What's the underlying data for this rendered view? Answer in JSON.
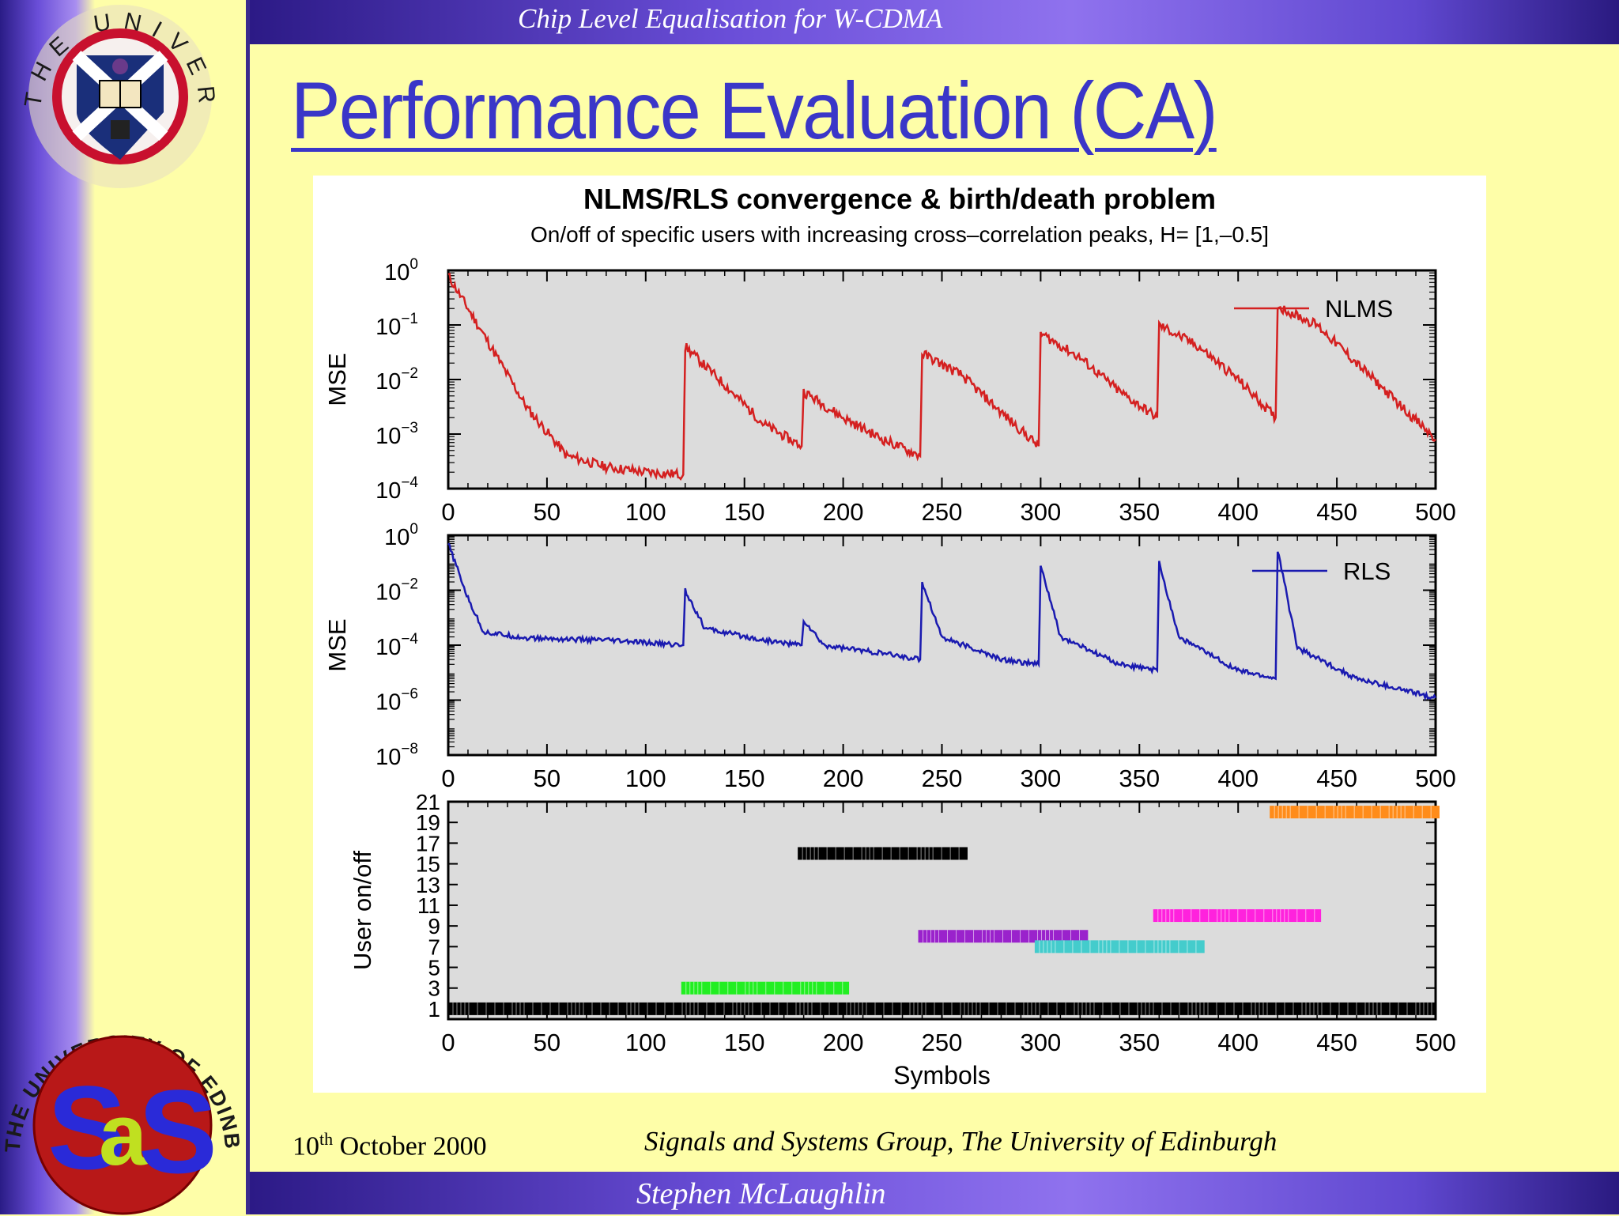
{
  "header": {
    "title": "Chip Level Equalisation for W-CDMA"
  },
  "slide": {
    "title": "Performance Evaluation (CA)"
  },
  "footer": {
    "date_day": "10",
    "date_suffix": "th",
    "date_rest": " October 2000",
    "group": "Signals and Systems Group, The University of Edinburgh",
    "author": "Stephen McLaughlin"
  },
  "logos": {
    "top": {
      "text": "THE UNIVERSITY OF EDINBURGH",
      "colors": {
        "ring": "#d8d8d8",
        "shield_red": "#c8102e",
        "shield_blue": "#1a2f7a"
      }
    },
    "bottom": {
      "text": "THE UNIVERSITY OF EDINBURGH · SIGNALS AND SYSTEMS GROUP",
      "mark": "SaS"
    }
  },
  "chart_data": [
    {
      "type": "line",
      "title": "NLMS/RLS convergence & birth/death problem",
      "subtitle": "On/off of specific users with increasing cross–correlation peaks, H= [1,–0.5]",
      "ylabel": "MSE",
      "xlim": [
        0,
        500
      ],
      "ylim_log10": [
        -4,
        0
      ],
      "x_ticks": [
        "0",
        "50",
        "100",
        "150",
        "200",
        "250",
        "300",
        "350",
        "400",
        "450",
        "500"
      ],
      "y_ticks": [
        {
          "base": "10",
          "exp": "0"
        },
        {
          "base": "10",
          "exp": "−1"
        },
        {
          "base": "10",
          "exp": "−2"
        },
        {
          "base": "10",
          "exp": "−3"
        },
        {
          "base": "10",
          "exp": "−4"
        }
      ],
      "y_scale": "log",
      "legend": "top-right",
      "series": [
        {
          "name": "NLMS",
          "color": "#d42020",
          "points": [
            [
              0,
              0.8
            ],
            [
              20,
              0.05
            ],
            [
              40,
              0.003
            ],
            [
              60,
              0.0004
            ],
            [
              80,
              0.00025
            ],
            [
              100,
              0.0002
            ],
            [
              119,
              0.00018
            ],
            [
              120,
              0.04
            ],
            [
              140,
              0.008
            ],
            [
              160,
              0.0015
            ],
            [
              179,
              0.0006
            ],
            [
              180,
              0.006
            ],
            [
              200,
              0.002
            ],
            [
              220,
              0.0008
            ],
            [
              239,
              0.0004
            ],
            [
              240,
              0.03
            ],
            [
              260,
              0.012
            ],
            [
              280,
              0.0025
            ],
            [
              299,
              0.0006
            ],
            [
              300,
              0.07
            ],
            [
              320,
              0.025
            ],
            [
              340,
              0.006
            ],
            [
              359,
              0.002
            ],
            [
              360,
              0.1
            ],
            [
              380,
              0.04
            ],
            [
              400,
              0.01
            ],
            [
              419,
              0.002
            ],
            [
              420,
              0.22
            ],
            [
              440,
              0.1
            ],
            [
              460,
              0.02
            ],
            [
              480,
              0.004
            ],
            [
              500,
              0.0008
            ]
          ]
        }
      ]
    },
    {
      "type": "line",
      "ylabel": "MSE",
      "xlim": [
        0,
        500
      ],
      "ylim_log10": [
        -8,
        0
      ],
      "x_ticks": [
        "0",
        "50",
        "100",
        "150",
        "200",
        "250",
        "300",
        "350",
        "400",
        "450",
        "500"
      ],
      "y_ticks": [
        {
          "base": "10",
          "exp": "0"
        },
        {
          "base": "10",
          "exp": "−2"
        },
        {
          "base": "10",
          "exp": "−4"
        },
        {
          "base": "10",
          "exp": "−6"
        },
        {
          "base": "10",
          "exp": "−8"
        }
      ],
      "y_scale": "log",
      "legend": "top-right",
      "series": [
        {
          "name": "RLS",
          "color": "#1a1ab0",
          "points": [
            [
              0,
              0.5
            ],
            [
              10,
              0.005
            ],
            [
              18,
              0.0003
            ],
            [
              40,
              0.00018
            ],
            [
              80,
              0.00015
            ],
            [
              119,
              0.0001
            ],
            [
              120,
              0.01
            ],
            [
              130,
              0.0004
            ],
            [
              160,
              0.00015
            ],
            [
              179,
              0.0001
            ],
            [
              180,
              0.0008
            ],
            [
              190,
              0.0001
            ],
            [
              220,
              5e-05
            ],
            [
              239,
              3e-05
            ],
            [
              240,
              0.02
            ],
            [
              250,
              0.0002
            ],
            [
              280,
              3e-05
            ],
            [
              299,
              2e-05
            ],
            [
              300,
              0.08
            ],
            [
              310,
              0.0002
            ],
            [
              340,
              2e-05
            ],
            [
              359,
              1.2e-05
            ],
            [
              360,
              0.1
            ],
            [
              370,
              0.0002
            ],
            [
              400,
              1.2e-05
            ],
            [
              419,
              6e-06
            ],
            [
              420,
              0.3
            ],
            [
              430,
              8e-05
            ],
            [
              460,
              6e-06
            ],
            [
              500,
              1.2e-06
            ]
          ]
        }
      ]
    },
    {
      "type": "bar",
      "xlabel": "Symbols",
      "ylabel": "User on/off",
      "xlim": [
        0,
        500
      ],
      "ylim": [
        0,
        21
      ],
      "x_ticks": [
        "0",
        "50",
        "100",
        "150",
        "200",
        "250",
        "300",
        "350",
        "400",
        "450",
        "500"
      ],
      "y_ticks": [
        "21",
        "19",
        "17",
        "15",
        "13",
        "11",
        "9",
        "7",
        "5",
        "3",
        "1"
      ],
      "segments": [
        {
          "user": 1,
          "start": 0,
          "end": 500,
          "color": "#000000"
        },
        {
          "user": 3,
          "start": 118,
          "end": 203,
          "color": "#22ee22"
        },
        {
          "user": 8,
          "start": 238,
          "end": 324,
          "color": "#9a22cc"
        },
        {
          "user": 7,
          "start": 297,
          "end": 383,
          "color": "#44cccc"
        },
        {
          "user": 10,
          "start": 357,
          "end": 442,
          "color": "#ff22dd"
        },
        {
          "user": 16,
          "start": 177,
          "end": 263,
          "color": "#000000"
        },
        {
          "user": 20,
          "start": 416,
          "end": 502,
          "color": "#ff8c1a"
        }
      ]
    }
  ]
}
